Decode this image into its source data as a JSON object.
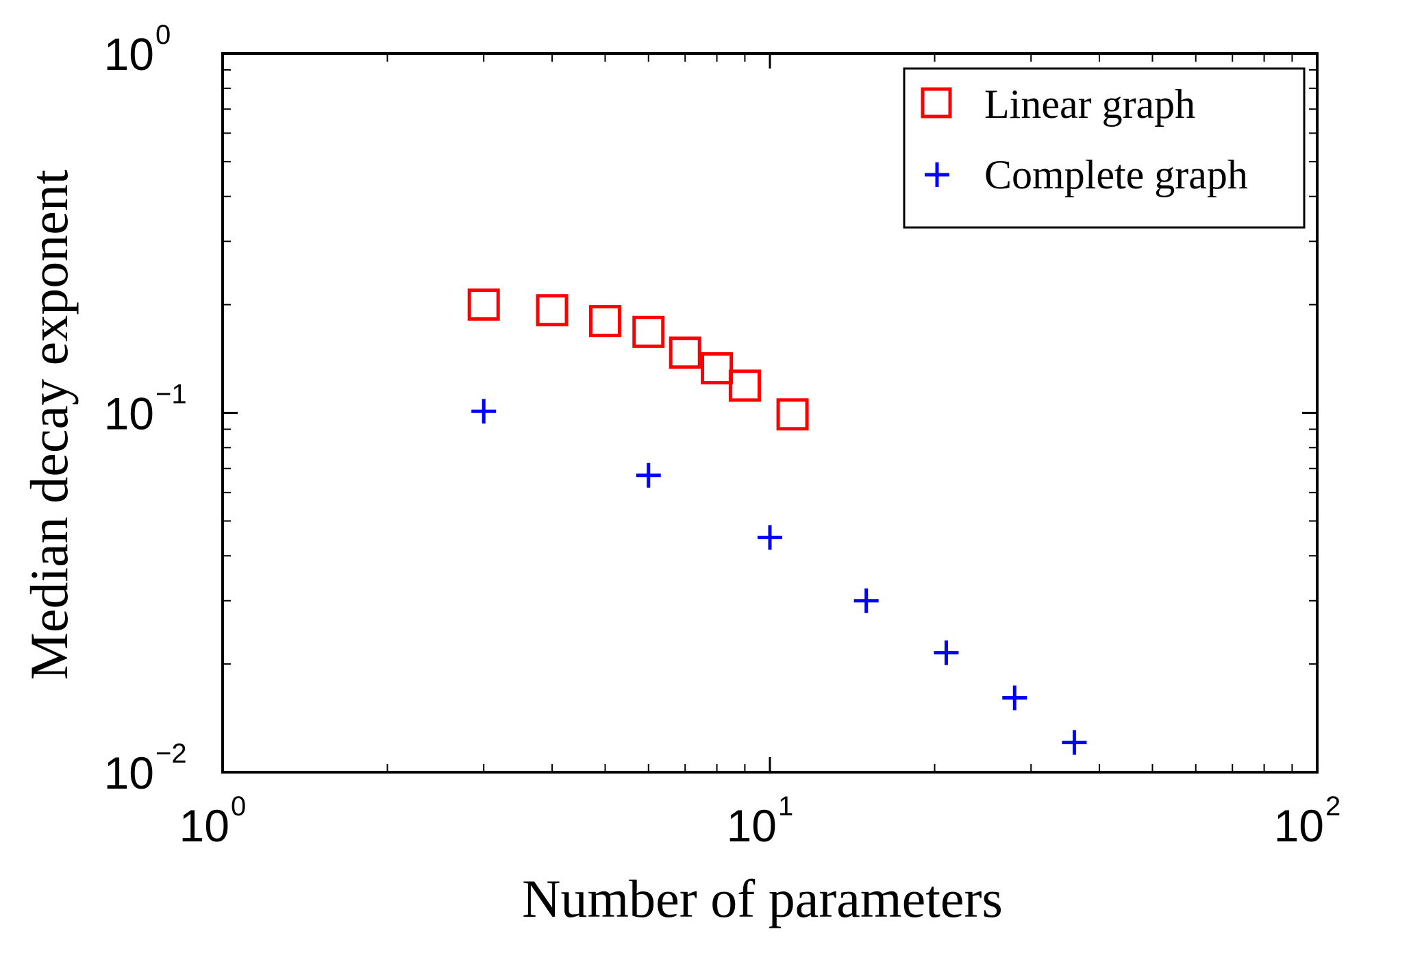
{
  "chart_data": {
    "type": "scatter",
    "xscale": "log",
    "yscale": "log",
    "xlim": [
      1,
      100
    ],
    "ylim": [
      0.01,
      1
    ],
    "xlabel": "Number of parameters",
    "ylabel": "Median decay exponent",
    "x_ticks": [
      {
        "base": "10",
        "exp": "0",
        "value": 1
      },
      {
        "base": "10",
        "exp": "1",
        "value": 10
      },
      {
        "base": "10",
        "exp": "2",
        "value": 100
      }
    ],
    "y_ticks": [
      {
        "base": "10",
        "exp": "−2",
        "value": 0.01
      },
      {
        "base": "10",
        "exp": "−1",
        "value": 0.1
      },
      {
        "base": "10",
        "exp": "0",
        "value": 1
      }
    ],
    "grid": false,
    "legend": "top-right",
    "series": [
      {
        "name": "Linear graph",
        "marker": "square",
        "color": "#ff0000",
        "x": [
          3,
          4,
          5,
          6,
          7,
          8,
          9,
          11
        ],
        "y": [
          0.2,
          0.193,
          0.18,
          0.168,
          0.147,
          0.133,
          0.119,
          0.099
        ]
      },
      {
        "name": "Complete graph",
        "marker": "plus",
        "color": "#0000ff",
        "x": [
          3,
          6,
          10,
          15,
          21,
          28,
          36
        ],
        "y": [
          0.101,
          0.067,
          0.045,
          0.03,
          0.0215,
          0.0161,
          0.0121
        ]
      }
    ]
  }
}
